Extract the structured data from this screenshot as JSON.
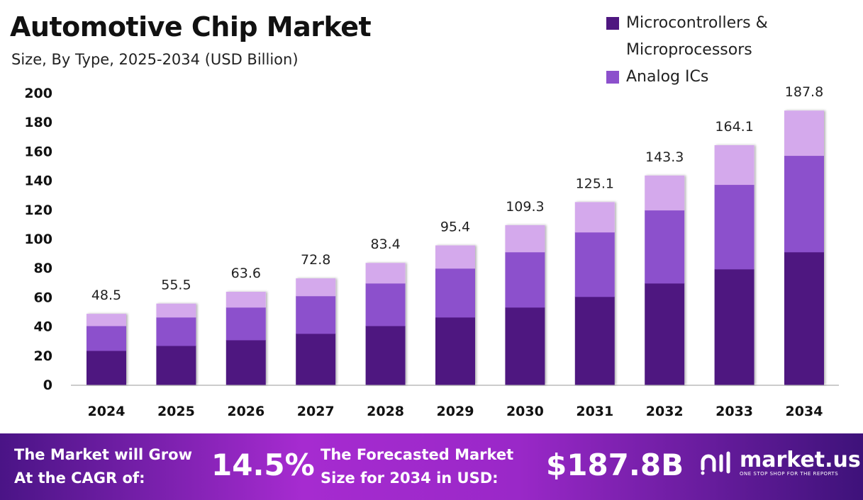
{
  "chart_data": {
    "type": "bar",
    "stacked": true,
    "title": "Automotive Chip Market",
    "subtitle": "Size, By Type, 2025-2034 (USD Billion)",
    "xlabel": "",
    "ylabel": "",
    "ylim": [
      0,
      200
    ],
    "yticks": [
      0,
      20,
      40,
      60,
      80,
      100,
      120,
      140,
      160,
      180,
      200
    ],
    "categories": [
      "2024",
      "2025",
      "2026",
      "2027",
      "2028",
      "2029",
      "2030",
      "2031",
      "2032",
      "2033",
      "2034"
    ],
    "totals": [
      48.5,
      55.5,
      63.6,
      72.8,
      83.4,
      95.4,
      109.3,
      125.1,
      143.3,
      164.1,
      187.8
    ],
    "series": [
      {
        "name": "Microcontrollers & Microprocessors",
        "color": "#4e1780",
        "values": [
          23.3,
          26.7,
          30.6,
          35.0,
          40.3,
          46.2,
          53.0,
          60.3,
          69.5,
          79.2,
          90.9
        ]
      },
      {
        "name": "Analog ICs",
        "color": "#8c50cc",
        "values": [
          17.0,
          19.5,
          22.4,
          25.8,
          29.2,
          33.5,
          37.9,
          44.2,
          50.1,
          57.9,
          66.1
        ]
      },
      {
        "name": "",
        "color": "#d4a9ec",
        "values": [
          8.2,
          9.3,
          10.6,
          12.0,
          13.9,
          15.7,
          18.4,
          20.6,
          23.7,
          27.0,
          30.8
        ]
      }
    ],
    "legend_position": "top-right",
    "grid": false
  },
  "legend": {
    "items": [
      {
        "line1": "Microcontrollers &",
        "line2": "Microprocessors",
        "color": "#4e1780"
      },
      {
        "line1": "Analog ICs",
        "line2": "",
        "color": "#8c50cc"
      }
    ]
  },
  "footer": {
    "cagr_line1": "The Market will Grow",
    "cagr_line2": "At the CAGR of:",
    "cagr_value": "14.5%",
    "forecast_line1": "The Forecasted Market",
    "forecast_line2": "Size for 2034 in USD:",
    "forecast_value": "$187.8B",
    "brand_name": "market.us",
    "brand_tagline": "ONE STOP SHOP FOR THE REPORTS"
  }
}
